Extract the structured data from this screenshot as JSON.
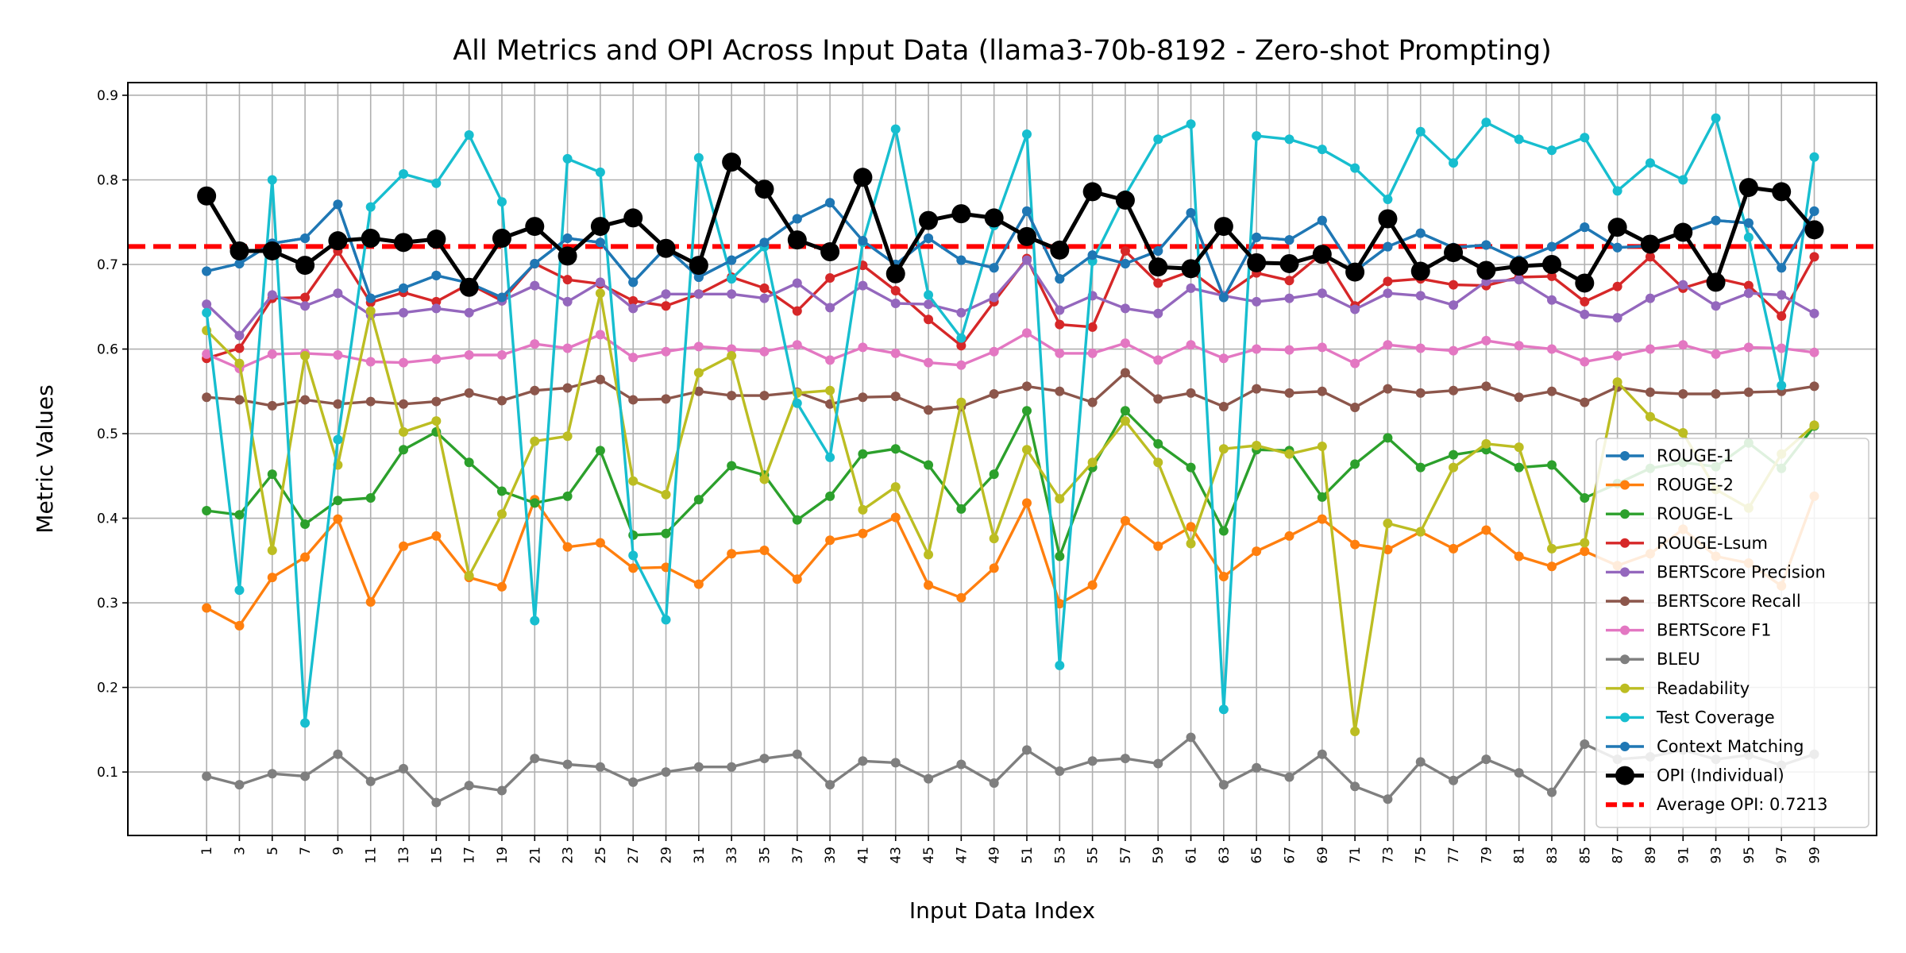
{
  "chart_data": {
    "type": "line",
    "title": "All Metrics and OPI Across Input Data (llama3-70b-8192 - Zero-shot Prompting)",
    "xlabel": "Input Data Index",
    "ylabel": "Metric Values",
    "x": [
      1,
      3,
      5,
      7,
      9,
      11,
      13,
      15,
      17,
      19,
      21,
      23,
      25,
      27,
      29,
      31,
      33,
      35,
      37,
      39,
      41,
      43,
      45,
      47,
      49,
      51,
      53,
      55,
      57,
      59,
      61,
      63,
      65,
      67,
      69,
      71,
      73,
      75,
      77,
      79,
      81,
      83,
      85,
      87,
      89,
      91,
      93,
      95,
      97,
      99
    ],
    "x_tick_labels": [
      "1",
      "3",
      "5",
      "7",
      "9",
      "11",
      "13",
      "15",
      "17",
      "19",
      "21",
      "23",
      "25",
      "27",
      "29",
      "31",
      "33",
      "35",
      "37",
      "39",
      "41",
      "43",
      "45",
      "47",
      "49",
      "51",
      "53",
      "55",
      "57",
      "59",
      "61",
      "63",
      "65",
      "67",
      "69",
      "71",
      "73",
      "75",
      "77",
      "79",
      "81",
      "83",
      "85",
      "87",
      "89",
      "91",
      "93",
      "95",
      "97",
      "99"
    ],
    "xlim": [
      -3.8,
      102.8
    ],
    "ylim": [
      0.025,
      0.915
    ],
    "y_ticks": [
      0.1,
      0.2,
      0.3,
      0.4,
      0.5,
      0.6,
      0.7,
      0.8,
      0.9
    ],
    "y_tick_labels": [
      "0.1",
      "0.2",
      "0.3",
      "0.4",
      "0.5",
      "0.6",
      "0.7",
      "0.8",
      "0.9"
    ],
    "grid": true,
    "legend_position": "lower-right",
    "average_line": {
      "name": "Average OPI: 0.7213",
      "value": 0.7213,
      "color": "#ff0000"
    },
    "series": [
      {
        "name": "ROUGE-1",
        "color": "#1f77b4",
        "values": [
          0.692,
          0.701,
          0.725,
          0.731,
          0.771,
          0.66,
          0.672,
          0.687,
          0.678,
          0.661,
          0.701,
          0.731,
          0.726,
          0.679,
          0.72,
          0.685,
          0.705,
          0.726,
          0.754,
          0.773,
          0.728,
          0.7,
          0.731,
          0.705,
          0.696,
          0.763,
          0.683,
          0.711,
          0.701,
          0.716,
          0.761,
          0.661,
          0.732,
          0.729,
          0.752,
          0.692,
          0.721,
          0.737,
          0.72,
          0.723,
          0.705,
          0.721,
          0.744,
          0.72,
          0.722,
          0.738,
          0.752,
          0.749,
          0.696,
          0.763
        ]
      },
      {
        "name": "ROUGE-2",
        "color": "#ff7f0e",
        "values": [
          0.294,
          0.273,
          0.33,
          0.354,
          0.399,
          0.301,
          0.367,
          0.379,
          0.33,
          0.319,
          0.422,
          0.366,
          0.371,
          0.341,
          0.342,
          0.322,
          0.358,
          0.362,
          0.328,
          0.374,
          0.382,
          0.401,
          0.321,
          0.306,
          0.341,
          0.418,
          0.299,
          0.321,
          0.397,
          0.367,
          0.39,
          0.331,
          0.361,
          0.379,
          0.399,
          0.369,
          0.363,
          0.384,
          0.364,
          0.386,
          0.355,
          0.343,
          0.361,
          0.344,
          0.358,
          0.387,
          0.355,
          0.347,
          0.32,
          0.426
        ]
      },
      {
        "name": "ROUGE-L",
        "color": "#2ca02c",
        "values": [
          0.409,
          0.404,
          0.452,
          0.393,
          0.421,
          0.424,
          0.481,
          0.502,
          0.466,
          0.432,
          0.418,
          0.426,
          0.48,
          0.38,
          0.382,
          0.422,
          0.462,
          0.451,
          0.398,
          0.426,
          0.476,
          0.482,
          0.463,
          0.411,
          0.452,
          0.527,
          0.355,
          0.46,
          0.527,
          0.488,
          0.46,
          0.385,
          0.481,
          0.48,
          0.425,
          0.464,
          0.495,
          0.46,
          0.475,
          0.481,
          0.46,
          0.463,
          0.424,
          0.441,
          0.459,
          0.466,
          0.461,
          0.489,
          0.459,
          0.509
        ]
      },
      {
        "name": "ROUGE-Lsum",
        "color": "#d62728",
        "values": [
          0.589,
          0.601,
          0.66,
          0.661,
          0.716,
          0.655,
          0.667,
          0.656,
          0.677,
          0.657,
          0.701,
          0.682,
          0.677,
          0.657,
          0.651,
          0.665,
          0.685,
          0.672,
          0.645,
          0.684,
          0.699,
          0.669,
          0.635,
          0.604,
          0.656,
          0.707,
          0.629,
          0.626,
          0.716,
          0.678,
          0.692,
          0.663,
          0.69,
          0.681,
          0.713,
          0.651,
          0.68,
          0.683,
          0.676,
          0.675,
          0.685,
          0.686,
          0.656,
          0.674,
          0.709,
          0.672,
          0.684,
          0.675,
          0.639,
          0.709
        ]
      },
      {
        "name": "BERTScore Precision",
        "color": "#9467bd",
        "values": [
          0.653,
          0.616,
          0.664,
          0.651,
          0.666,
          0.64,
          0.643,
          0.648,
          0.643,
          0.657,
          0.675,
          0.656,
          0.679,
          0.648,
          0.665,
          0.665,
          0.665,
          0.66,
          0.678,
          0.649,
          0.675,
          0.654,
          0.653,
          0.643,
          0.661,
          0.705,
          0.646,
          0.663,
          0.648,
          0.642,
          0.672,
          0.663,
          0.656,
          0.66,
          0.666,
          0.647,
          0.666,
          0.663,
          0.652,
          0.68,
          0.682,
          0.658,
          0.641,
          0.637,
          0.66,
          0.676,
          0.651,
          0.666,
          0.664,
          0.642
        ]
      },
      {
        "name": "BERTScore Recall",
        "color": "#8c564b",
        "values": [
          0.543,
          0.54,
          0.533,
          0.54,
          0.535,
          0.538,
          0.535,
          0.538,
          0.548,
          0.539,
          0.551,
          0.554,
          0.564,
          0.54,
          0.541,
          0.55,
          0.545,
          0.545,
          0.549,
          0.535,
          0.543,
          0.544,
          0.528,
          0.532,
          0.547,
          0.556,
          0.55,
          0.537,
          0.572,
          0.541,
          0.548,
          0.532,
          0.553,
          0.548,
          0.55,
          0.531,
          0.553,
          0.548,
          0.551,
          0.556,
          0.543,
          0.55,
          0.537,
          0.555,
          0.549,
          0.547,
          0.547,
          0.549,
          0.55,
          0.556
        ]
      },
      {
        "name": "BERTScore F1",
        "color": "#e377c2",
        "values": [
          0.594,
          0.577,
          0.594,
          0.595,
          0.593,
          0.585,
          0.584,
          0.588,
          0.593,
          0.593,
          0.606,
          0.601,
          0.617,
          0.59,
          0.597,
          0.603,
          0.6,
          0.597,
          0.605,
          0.587,
          0.602,
          0.595,
          0.584,
          0.581,
          0.597,
          0.619,
          0.595,
          0.595,
          0.607,
          0.587,
          0.605,
          0.589,
          0.6,
          0.599,
          0.602,
          0.583,
          0.605,
          0.601,
          0.598,
          0.61,
          0.604,
          0.6,
          0.585,
          0.592,
          0.6,
          0.605,
          0.594,
          0.602,
          0.601,
          0.596
        ]
      },
      {
        "name": "BLEU",
        "color": "#7f7f7f",
        "values": [
          0.095,
          0.085,
          0.098,
          0.095,
          0.121,
          0.089,
          0.104,
          0.064,
          0.084,
          0.078,
          0.116,
          0.109,
          0.106,
          0.088,
          0.1,
          0.106,
          0.106,
          0.116,
          0.121,
          0.085,
          0.113,
          0.111,
          0.092,
          0.109,
          0.087,
          0.126,
          0.101,
          0.113,
          0.116,
          0.11,
          0.141,
          0.085,
          0.105,
          0.094,
          0.121,
          0.083,
          0.068,
          0.112,
          0.09,
          0.115,
          0.099,
          0.076,
          0.133,
          0.115,
          0.118,
          0.126,
          0.115,
          0.12,
          0.108,
          0.121
        ]
      },
      {
        "name": "Readability",
        "color": "#bcbd22",
        "values": [
          0.622,
          0.583,
          0.362,
          0.592,
          0.463,
          0.645,
          0.502,
          0.515,
          0.332,
          0.405,
          0.491,
          0.497,
          0.666,
          0.444,
          0.428,
          0.572,
          0.592,
          0.446,
          0.548,
          0.551,
          0.41,
          0.437,
          0.357,
          0.537,
          0.376,
          0.481,
          0.423,
          0.466,
          0.515,
          0.466,
          0.37,
          0.482,
          0.486,
          0.476,
          0.485,
          0.148,
          0.394,
          0.384,
          0.46,
          0.488,
          0.484,
          0.364,
          0.371,
          0.561,
          0.52,
          0.501,
          0.434,
          0.412,
          0.476,
          0.51
        ]
      },
      {
        "name": "Test Coverage",
        "color": "#17becf",
        "values": [
          0.643,
          0.315,
          0.8,
          0.158,
          0.493,
          0.768,
          0.807,
          0.796,
          0.853,
          0.774,
          0.279,
          0.825,
          0.809,
          0.356,
          0.28,
          0.826,
          0.683,
          0.721,
          0.536,
          0.472,
          0.726,
          0.86,
          0.664,
          0.613,
          0.746,
          0.854,
          0.226,
          0.704,
          0.782,
          0.848,
          0.866,
          0.174,
          0.852,
          0.848,
          0.836,
          0.814,
          0.777,
          0.857,
          0.82,
          0.868,
          0.848,
          0.835,
          0.85,
          0.787,
          0.82,
          0.8,
          0.873,
          0.732,
          0.557,
          0.827
        ]
      },
      {
        "name": "Context Matching",
        "color": "#1f77b4",
        "values": [
          0.692,
          0.701,
          0.725,
          0.731,
          0.771,
          0.66,
          0.672,
          0.687,
          0.678,
          0.661,
          0.701,
          0.731,
          0.726,
          0.679,
          0.72,
          0.685,
          0.705,
          0.726,
          0.754,
          0.773,
          0.728,
          0.7,
          0.731,
          0.705,
          0.696,
          0.763,
          0.683,
          0.711,
          0.701,
          0.716,
          0.761,
          0.661,
          0.732,
          0.729,
          0.752,
          0.692,
          0.721,
          0.737,
          0.72,
          0.723,
          0.705,
          0.721,
          0.744,
          0.72,
          0.722,
          0.738,
          0.752,
          0.749,
          0.696,
          0.763
        ]
      },
      {
        "name": "OPI (Individual)",
        "color": "#000000",
        "emphasis": true,
        "values": [
          0.781,
          0.716,
          0.716,
          0.699,
          0.728,
          0.731,
          0.726,
          0.73,
          0.673,
          0.731,
          0.745,
          0.71,
          0.745,
          0.755,
          0.719,
          0.699,
          0.821,
          0.789,
          0.729,
          0.715,
          0.803,
          0.689,
          0.752,
          0.76,
          0.755,
          0.733,
          0.717,
          0.786,
          0.776,
          0.697,
          0.695,
          0.745,
          0.702,
          0.701,
          0.712,
          0.691,
          0.754,
          0.692,
          0.714,
          0.693,
          0.698,
          0.7,
          0.678,
          0.744,
          0.724,
          0.738,
          0.679,
          0.791,
          0.786,
          0.741
        ]
      }
    ]
  }
}
